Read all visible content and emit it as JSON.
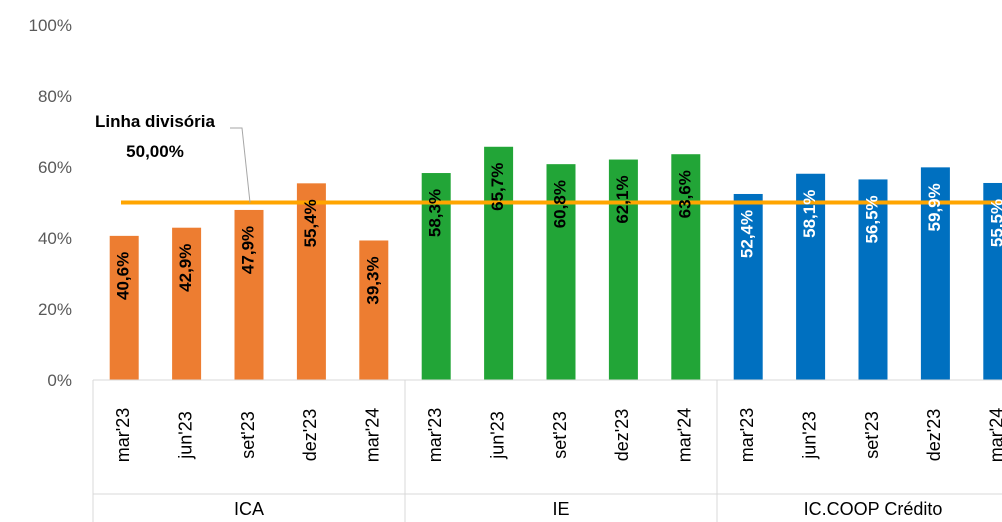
{
  "chart_data": {
    "type": "bar",
    "yticks": [
      "0%",
      "20%",
      "40%",
      "60%",
      "80%",
      "100%"
    ],
    "ylim": [
      0,
      100
    ],
    "grid": false,
    "groups": [
      {
        "name": "ICA",
        "color": "#ED7D31",
        "label_color": "#000000",
        "categories": [
          "mar'23",
          "jun'23",
          "set'23",
          "dez'23",
          "mar'24"
        ],
        "values": [
          40.6,
          42.9,
          47.9,
          55.4,
          39.3
        ],
        "labels": [
          "40,6%",
          "42,9%",
          "47,9%",
          "55,4%",
          "39,3%"
        ]
      },
      {
        "name": "IE",
        "color": "#22A537",
        "label_color": "#000000",
        "categories": [
          "mar'23",
          "jun'23",
          "set'23",
          "dez'23",
          "mar'24"
        ],
        "values": [
          58.3,
          65.7,
          60.8,
          62.1,
          63.6
        ],
        "labels": [
          "58,3%",
          "65,7%",
          "60,8%",
          "62,1%",
          "63,6%"
        ]
      },
      {
        "name": "IC.COOP Crédito",
        "color": "#0070C0",
        "label_color": "#FFFFFF",
        "categories": [
          "mar'23",
          "jun'23",
          "set'23",
          "dez'23",
          "mar'24"
        ],
        "values": [
          52.4,
          58.1,
          56.5,
          59.9,
          55.5
        ],
        "labels": [
          "52,4%",
          "58,1%",
          "56,5%",
          "59,9%",
          "55,5%"
        ]
      }
    ],
    "reference_line": {
      "value": 50.0,
      "color": "#FFA500",
      "annotation_line1": "Linha divisória",
      "annotation_line2": "50,00%"
    }
  }
}
